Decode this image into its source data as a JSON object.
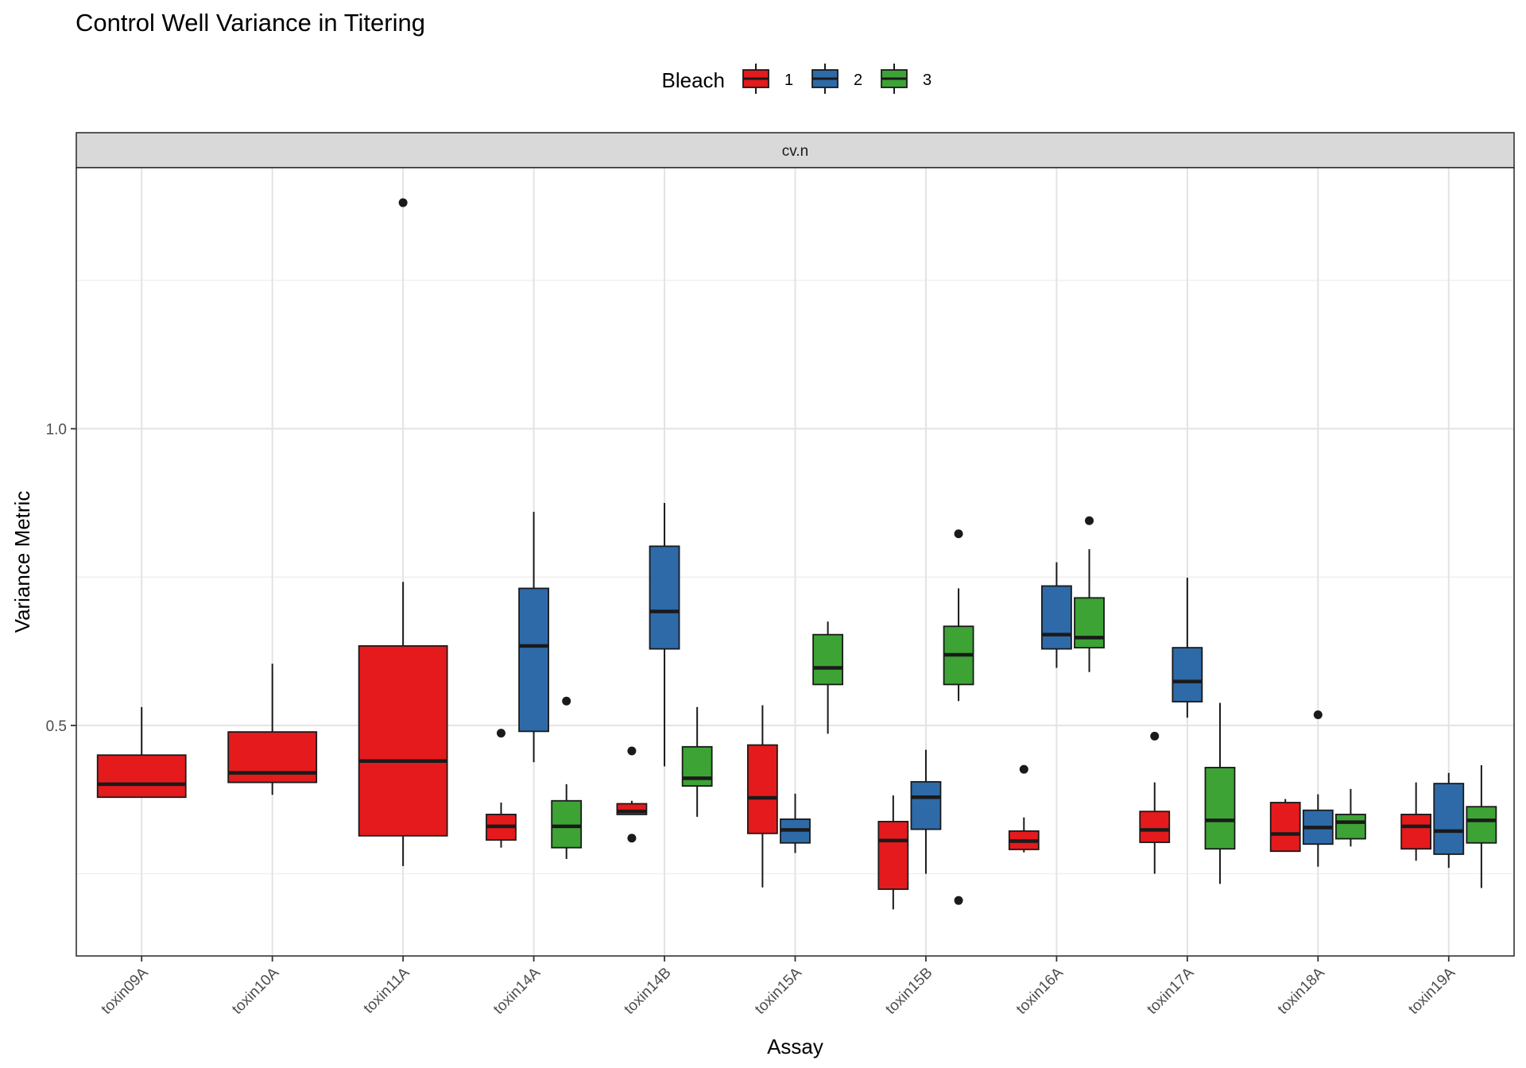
{
  "chart_data": {
    "type": "boxplot",
    "title": "Control Well Variance in Titering",
    "facet": "cv.n",
    "xlabel": "Assay",
    "ylabel": "Variance Metric",
    "ylim": [
      0.1115,
      1.44
    ],
    "y_ticks": [
      0.5,
      1.0
    ],
    "y_tick_labels": [
      "0.5",
      "1.0"
    ],
    "y_minor_ticks": [
      0.25,
      0.75,
      1.25
    ],
    "legend": {
      "title": "Bleach",
      "position": "top",
      "entries": [
        {
          "label": "1",
          "color": "#E41A1C"
        },
        {
          "label": "2",
          "color": "#2E6AA8"
        },
        {
          "label": "3",
          "color": "#3DA335"
        }
      ]
    },
    "categories": [
      "toxin09A",
      "toxin10A",
      "toxin11A",
      "toxin14A",
      "toxin14B",
      "toxin15A",
      "toxin15B",
      "toxin16A",
      "toxin17A",
      "toxin18A",
      "toxin19A"
    ],
    "boxes": [
      {
        "category": "toxin09A",
        "group": "1",
        "whisker_low": 0.379,
        "q1": 0.379,
        "median": 0.401,
        "q3": 0.45,
        "whisker_high": 0.531,
        "outliers": []
      },
      {
        "category": "toxin10A",
        "group": "1",
        "whisker_low": 0.383,
        "q1": 0.404,
        "median": 0.42,
        "q3": 0.489,
        "whisker_high": 0.604,
        "outliers": []
      },
      {
        "category": "toxin11A",
        "group": "1",
        "whisker_low": 0.263,
        "q1": 0.314,
        "median": 0.44,
        "q3": 0.634,
        "whisker_high": 0.742,
        "outliers": [
          1.381
        ]
      },
      {
        "category": "toxin14A",
        "group": "1",
        "whisker_low": 0.294,
        "q1": 0.307,
        "median": 0.33,
        "q3": 0.35,
        "whisker_high": 0.37,
        "outliers": [
          0.487
        ]
      },
      {
        "category": "toxin14A",
        "group": "2",
        "whisker_low": 0.438,
        "q1": 0.49,
        "median": 0.634,
        "q3": 0.731,
        "whisker_high": 0.86,
        "outliers": []
      },
      {
        "category": "toxin14A",
        "group": "3",
        "whisker_low": 0.275,
        "q1": 0.294,
        "median": 0.33,
        "q3": 0.373,
        "whisker_high": 0.401,
        "outliers": [
          0.541
        ]
      },
      {
        "category": "toxin14B",
        "group": "1",
        "whisker_low": 0.35,
        "q1": 0.35,
        "median": 0.355,
        "q3": 0.368,
        "whisker_high": 0.373,
        "outliers": [
          0.457,
          0.31
        ]
      },
      {
        "category": "toxin14B",
        "group": "2",
        "whisker_low": 0.431,
        "q1": 0.629,
        "median": 0.692,
        "q3": 0.802,
        "whisker_high": 0.875,
        "outliers": []
      },
      {
        "category": "toxin14B",
        "group": "3",
        "whisker_low": 0.346,
        "q1": 0.398,
        "median": 0.411,
        "q3": 0.464,
        "whisker_high": 0.531,
        "outliers": []
      },
      {
        "category": "toxin15A",
        "group": "1",
        "whisker_low": 0.227,
        "q1": 0.318,
        "median": 0.378,
        "q3": 0.467,
        "whisker_high": 0.534,
        "outliers": []
      },
      {
        "category": "toxin15A",
        "group": "2",
        "whisker_low": 0.285,
        "q1": 0.302,
        "median": 0.324,
        "q3": 0.342,
        "whisker_high": 0.385,
        "outliers": []
      },
      {
        "category": "toxin15A",
        "group": "3",
        "whisker_low": 0.486,
        "q1": 0.569,
        "median": 0.597,
        "q3": 0.653,
        "whisker_high": 0.675,
        "outliers": []
      },
      {
        "category": "toxin15B",
        "group": "1",
        "whisker_low": 0.19,
        "q1": 0.224,
        "median": 0.306,
        "q3": 0.338,
        "whisker_high": 0.382,
        "outliers": []
      },
      {
        "category": "toxin15B",
        "group": "2",
        "whisker_low": 0.25,
        "q1": 0.325,
        "median": 0.379,
        "q3": 0.405,
        "whisker_high": 0.459,
        "outliers": []
      },
      {
        "category": "toxin15B",
        "group": "3",
        "whisker_low": 0.541,
        "q1": 0.569,
        "median": 0.619,
        "q3": 0.667,
        "whisker_high": 0.731,
        "outliers": [
          0.823,
          0.205
        ]
      },
      {
        "category": "toxin16A",
        "group": "1",
        "whisker_low": 0.286,
        "q1": 0.291,
        "median": 0.305,
        "q3": 0.322,
        "whisker_high": 0.345,
        "outliers": [
          0.426
        ]
      },
      {
        "category": "toxin16A",
        "group": "2",
        "whisker_low": 0.597,
        "q1": 0.629,
        "median": 0.653,
        "q3": 0.735,
        "whisker_high": 0.775,
        "outliers": []
      },
      {
        "category": "toxin16A",
        "group": "3",
        "whisker_low": 0.59,
        "q1": 0.631,
        "median": 0.648,
        "q3": 0.715,
        "whisker_high": 0.797,
        "outliers": [
          0.845
        ]
      },
      {
        "category": "toxin17A",
        "group": "1",
        "whisker_low": 0.25,
        "q1": 0.303,
        "median": 0.324,
        "q3": 0.355,
        "whisker_high": 0.404,
        "outliers": [
          0.482
        ]
      },
      {
        "category": "toxin17A",
        "group": "2",
        "whisker_low": 0.513,
        "q1": 0.54,
        "median": 0.574,
        "q3": 0.631,
        "whisker_high": 0.749,
        "outliers": []
      },
      {
        "category": "toxin17A",
        "group": "3",
        "whisker_low": 0.233,
        "q1": 0.292,
        "median": 0.34,
        "q3": 0.429,
        "whisker_high": 0.538,
        "outliers": []
      },
      {
        "category": "toxin18A",
        "group": "1",
        "whisker_low": 0.288,
        "q1": 0.288,
        "median": 0.317,
        "q3": 0.37,
        "whisker_high": 0.376,
        "outliers": []
      },
      {
        "category": "toxin18A",
        "group": "2",
        "whisker_low": 0.262,
        "q1": 0.3,
        "median": 0.328,
        "q3": 0.357,
        "whisker_high": 0.384,
        "outliers": [
          0.518
        ]
      },
      {
        "category": "toxin18A",
        "group": "3",
        "whisker_low": 0.296,
        "q1": 0.309,
        "median": 0.337,
        "q3": 0.35,
        "whisker_high": 0.393,
        "outliers": []
      },
      {
        "category": "toxin19A",
        "group": "1",
        "whisker_low": 0.272,
        "q1": 0.292,
        "median": 0.33,
        "q3": 0.35,
        "whisker_high": 0.404,
        "outliers": []
      },
      {
        "category": "toxin19A",
        "group": "2",
        "whisker_low": 0.26,
        "q1": 0.283,
        "median": 0.322,
        "q3": 0.402,
        "whisker_high": 0.42,
        "outliers": []
      },
      {
        "category": "toxin19A",
        "group": "3",
        "whisker_low": 0.226,
        "q1": 0.302,
        "median": 0.34,
        "q3": 0.363,
        "whisker_high": 0.433,
        "outliers": []
      }
    ]
  }
}
